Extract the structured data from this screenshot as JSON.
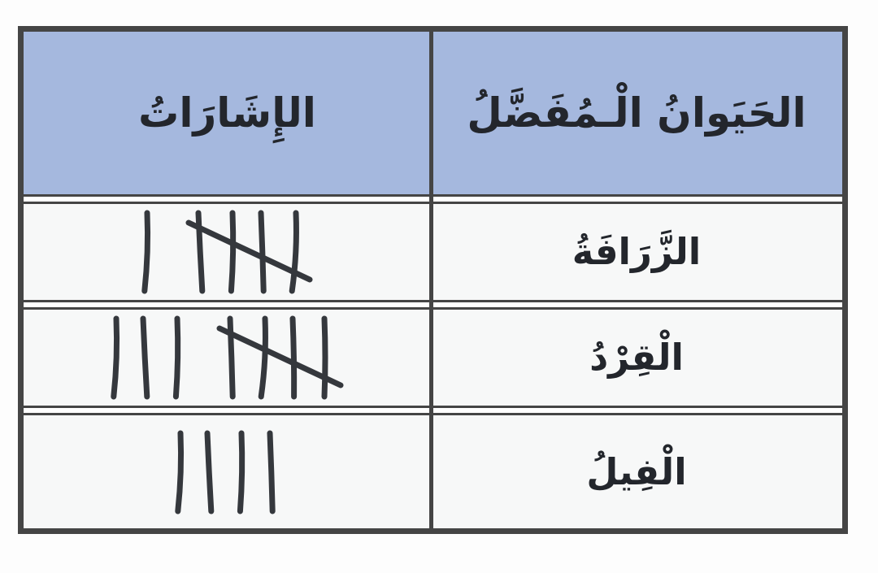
{
  "page": {
    "description_label": "tally chart of favorite animals",
    "background_color": "#fdfdfd"
  },
  "colors": {
    "header_bg": "#a5b8de",
    "border": "#454545",
    "row_bg": "#f7f8f8",
    "ink": "#23262c",
    "tally_stroke": "#35383d"
  },
  "table": {
    "header": {
      "animal_label": "الحَيَوانُ الْـمُفَضَّلُ",
      "tallies_label": "الإِشَارَاتُ"
    },
    "rows": [
      {
        "animal": "الزَّرَافَةُ",
        "tally_total": 6,
        "tally_groups": [
          1,
          5
        ]
      },
      {
        "animal": "الْقِرْدُ",
        "tally_total": 8,
        "tally_groups": [
          3,
          5
        ]
      },
      {
        "animal": "الْفِيلُ",
        "tally_total": 4,
        "tally_groups": [
          4
        ]
      }
    ]
  },
  "chart_data": {
    "type": "table",
    "subtype": "tally-chart",
    "title": "",
    "columns": [
      "الحَيَوانُ الْـمُفَضَّلُ",
      "الإِشَارَاتُ"
    ],
    "categories": [
      "الزَّرَافَةُ",
      "الْقِرْدُ",
      "الْفِيلُ"
    ],
    "values": [
      6,
      8,
      4
    ],
    "value_encoding": "tally marks (groups of five crossed diagonally)",
    "layout": "right-to-left; animal names in right column, tallies in left column; blue header row"
  }
}
